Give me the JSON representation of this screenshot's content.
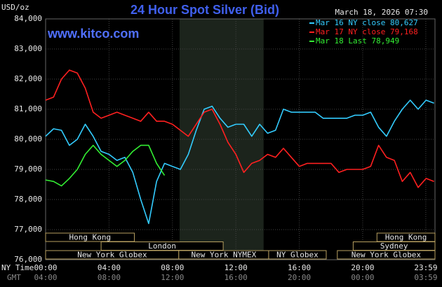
{
  "chart_data": {
    "type": "line",
    "title": "24 Hour Spot Silver (Bid)",
    "y_unit": "USD/oz",
    "timestamp": "March 18, 2026 07:30",
    "source": "www.kitco.com",
    "x_axis_label": "NY Time",
    "x2_axis_label": "GMT",
    "xlim": [
      0,
      24.56
    ],
    "xticks": [
      {
        "value": 0,
        "label": "00:00"
      },
      {
        "value": 4,
        "label": "04:00"
      },
      {
        "value": 8,
        "label": "08:00"
      },
      {
        "value": 12,
        "label": "12:00"
      },
      {
        "value": 16,
        "label": "16:00"
      },
      {
        "value": 20,
        "label": "20:00"
      },
      {
        "value": 23.98,
        "label": "23:59"
      }
    ],
    "x2ticks": [
      "04:00",
      "08:00",
      "12:00",
      "16:00",
      "20:00",
      "00:00",
      "03:59"
    ],
    "ylim": [
      76000,
      84000
    ],
    "yticks": [
      {
        "value": 76000,
        "label": "76,000"
      },
      {
        "value": 77000,
        "label": "77,000"
      },
      {
        "value": 78000,
        "label": "78,000"
      },
      {
        "value": 79000,
        "label": "79,000"
      },
      {
        "value": 80000,
        "label": "80,000"
      },
      {
        "value": 81000,
        "label": "81,000"
      },
      {
        "value": 82000,
        "label": "82,000"
      },
      {
        "value": 83000,
        "label": "83,000"
      },
      {
        "value": 84000,
        "label": "84,000"
      }
    ],
    "grid": true,
    "highlight": [
      8.45,
      13.75
    ],
    "sessions": [
      {
        "label": "Hong Kong",
        "start": 0,
        "end": 5.6
      },
      {
        "label": "London",
        "start": 3.5,
        "end": 11.2
      },
      {
        "label": "New York Globex",
        "start": 0,
        "end": 8.4
      },
      {
        "label": "New York NYMEX",
        "start": 8.4,
        "end": 14.07
      },
      {
        "label": "NY Globex",
        "start": 14.07,
        "end": 17.7
      },
      {
        "label": "Hong Kong",
        "start": 20.9,
        "end": 24.56
      },
      {
        "label": "Sydney",
        "start": 19.4,
        "end": 24.56
      },
      {
        "label": "New York Globex",
        "start": 18.4,
        "end": 24.56
      }
    ],
    "x": [
      0,
      0.5,
      1,
      1.5,
      2,
      2.5,
      3,
      3.5,
      4,
      4.5,
      5,
      5.5,
      6,
      6.5,
      7,
      7.5,
      8,
      8.5,
      9,
      9.5,
      10,
      10.5,
      11,
      11.5,
      12,
      12.5,
      13,
      13.5,
      14,
      14.5,
      15,
      15.5,
      16,
      16.5,
      17,
      17.5,
      18,
      18.5,
      19,
      19.5,
      20,
      20.5,
      21,
      21.5,
      22,
      22.5,
      23,
      23.5,
      24,
      24.5
    ],
    "series": [
      {
        "name": "Mar 16 NY close 80,627",
        "color": "#33ccff",
        "values": [
          80100,
          80350,
          80300,
          79800,
          80000,
          80500,
          80100,
          79600,
          79500,
          79300,
          79400,
          78900,
          78000,
          77200,
          78600,
          79200,
          79100,
          79000,
          79500,
          80300,
          81000,
          81100,
          80700,
          80400,
          80500,
          80500,
          80100,
          80500,
          80200,
          80300,
          81000,
          80900,
          80900,
          80900,
          80900,
          80700,
          80700,
          80700,
          80700,
          80800,
          80800,
          80900,
          80400,
          80100,
          80600,
          81000,
          81300,
          81000,
          81300,
          81200
        ]
      },
      {
        "name": "Mar 17 NY close 79,168",
        "color": "#ff2020",
        "values": [
          81300,
          81400,
          82000,
          82300,
          82200,
          81700,
          80900,
          80700,
          80800,
          80900,
          80800,
          80700,
          80600,
          80900,
          80600,
          80600,
          80500,
          80300,
          80100,
          80500,
          80900,
          81000,
          80500,
          79900,
          79500,
          78900,
          79200,
          79300,
          79500,
          79400,
          79700,
          79400,
          79100,
          79200,
          79200,
          79200,
          79200,
          78900,
          79000,
          79000,
          79000,
          79100,
          79800,
          79400,
          79300,
          78600,
          78900,
          78400,
          78700,
          78600
        ]
      },
      {
        "name": "Mar 18 Last 78,949",
        "color": "#33ee33",
        "values": [
          78650,
          78600,
          78450,
          78700,
          79000,
          79500,
          79800,
          79500,
          79300,
          79100,
          79300,
          79600,
          79800,
          79800,
          79200,
          78800,
          null,
          null,
          null,
          null,
          null,
          null,
          null,
          null,
          null,
          null,
          null,
          null,
          null,
          null,
          null,
          null,
          null,
          null,
          null,
          null,
          null,
          null,
          null,
          null,
          null,
          null,
          null,
          null,
          null,
          null,
          null,
          null,
          null,
          null
        ]
      }
    ]
  }
}
